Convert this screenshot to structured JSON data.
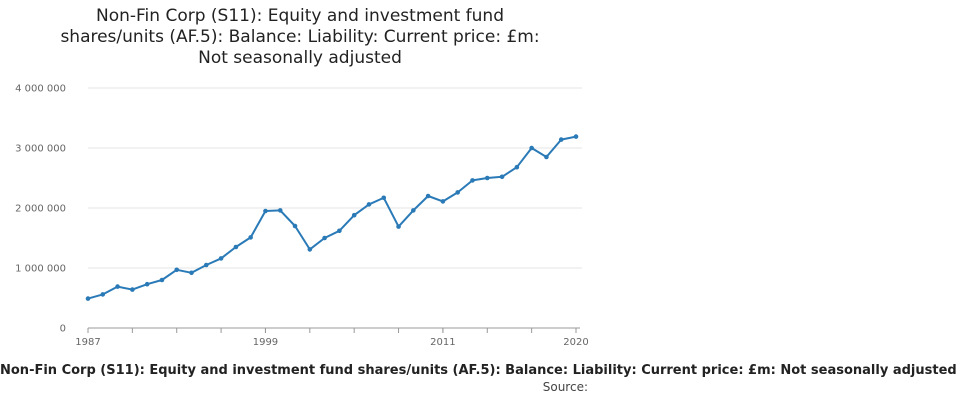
{
  "title_lines": [
    "Non-Fin Corp (S11): Equity and investment fund",
    "shares/units (AF.5): Balance: Liability: Current price: £m:",
    "Not seasonally adjusted"
  ],
  "caption": "Non-Fin Corp (S11): Equity and investment fund shares/units (AF.5): Balance: Liability: Current price: £m: Not seasonally adjusted",
  "source_label": "Source:",
  "colors": {
    "line": "#2a7ab7",
    "grid": "#e6e6e6",
    "axis": "#999999"
  },
  "chart_data": {
    "type": "line",
    "title": "Non-Fin Corp (S11): Equity and investment fund shares/units (AF.5): Balance: Liability: Current price: £m: Not seasonally adjusted",
    "xlabel": "",
    "ylabel": "",
    "xlim": [
      1987,
      2020
    ],
    "ylim": [
      0,
      4000000
    ],
    "x_ticks": [
      {
        "value": 1987,
        "label": "1987"
      },
      {
        "value": 1999,
        "label": "1999"
      },
      {
        "value": 2011,
        "label": "2011"
      },
      {
        "value": 2020,
        "label": "2020"
      }
    ],
    "y_ticks": [
      {
        "value": 0,
        "label": "0"
      },
      {
        "value": 1000000,
        "label": "1 000 000"
      },
      {
        "value": 2000000,
        "label": "2 000 000"
      },
      {
        "value": 3000000,
        "label": "3 000 000"
      },
      {
        "value": 4000000,
        "label": "4 000 000"
      }
    ],
    "grid": true,
    "legend": "none",
    "x": [
      1987,
      1988,
      1989,
      1990,
      1991,
      1992,
      1993,
      1994,
      1995,
      1996,
      1997,
      1998,
      1999,
      2000,
      2001,
      2002,
      2003,
      2004,
      2005,
      2006,
      2007,
      2008,
      2009,
      2010,
      2011,
      2012,
      2013,
      2014,
      2015,
      2016,
      2017,
      2018,
      2019,
      2020
    ],
    "series": [
      {
        "values": [
          490000,
          560000,
          690000,
          640000,
          730000,
          800000,
          970000,
          920000,
          1050000,
          1160000,
          1350000,
          1510000,
          1950000,
          1960000,
          1700000,
          1310000,
          1500000,
          1620000,
          1880000,
          2060000,
          2170000,
          1690000,
          1960000,
          2200000,
          2110000,
          2260000,
          2460000,
          2500000,
          2520000,
          2680000,
          3000000,
          2850000,
          3140000,
          3190000
        ]
      }
    ]
  }
}
